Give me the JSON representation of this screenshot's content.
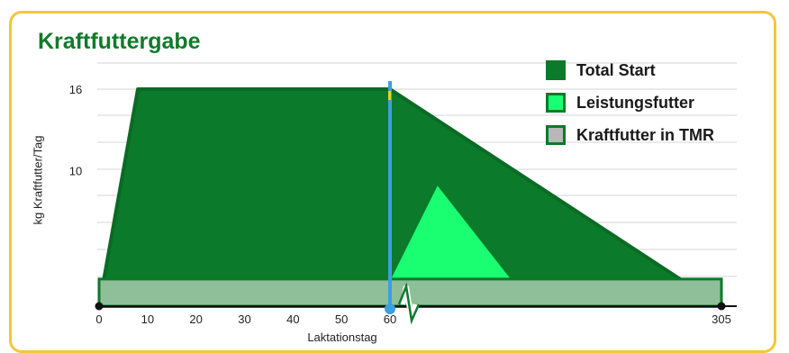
{
  "title": "Kraftfuttergabe",
  "chart_data": {
    "type": "area",
    "title": "Kraftfuttergabe",
    "xlabel": "Laktationstag",
    "ylabel": "kg Kraftfutter/Tag",
    "x_ticks": [
      "0",
      "10",
      "20",
      "30",
      "40",
      "50",
      "60",
      "305"
    ],
    "y_ticks": [
      "10",
      "16"
    ],
    "ylim": [
      0,
      16
    ],
    "axis_break_after_x": 60,
    "marker_line_x": 60,
    "legend_position": "top-right",
    "series": [
      {
        "name": "Total Start",
        "color": "#0b7a2a",
        "points": [
          [
            0,
            0
          ],
          [
            8,
            16
          ],
          [
            60,
            16
          ],
          [
            305,
            0
          ]
        ]
      },
      {
        "name": "Leistungsfutter",
        "color": "#1aff72",
        "points": [
          [
            60,
            2
          ],
          [
            95,
            9
          ],
          [
            150,
            2
          ]
        ]
      },
      {
        "name": "Kraftfutter in TMR",
        "color": "#8fbf98",
        "points": [
          [
            0,
            2
          ],
          [
            305,
            2
          ]
        ]
      }
    ]
  },
  "legend": [
    {
      "label": "Total Start",
      "fill": "#0b7a2a",
      "border": "#0b7a2a"
    },
    {
      "label": "Leistungsfutter",
      "fill": "#1aff72",
      "border": "#0b7a2a"
    },
    {
      "label": "Kraftfutter in TMR",
      "fill": "#b8b8b8",
      "border": "#0b7a2a"
    }
  ]
}
